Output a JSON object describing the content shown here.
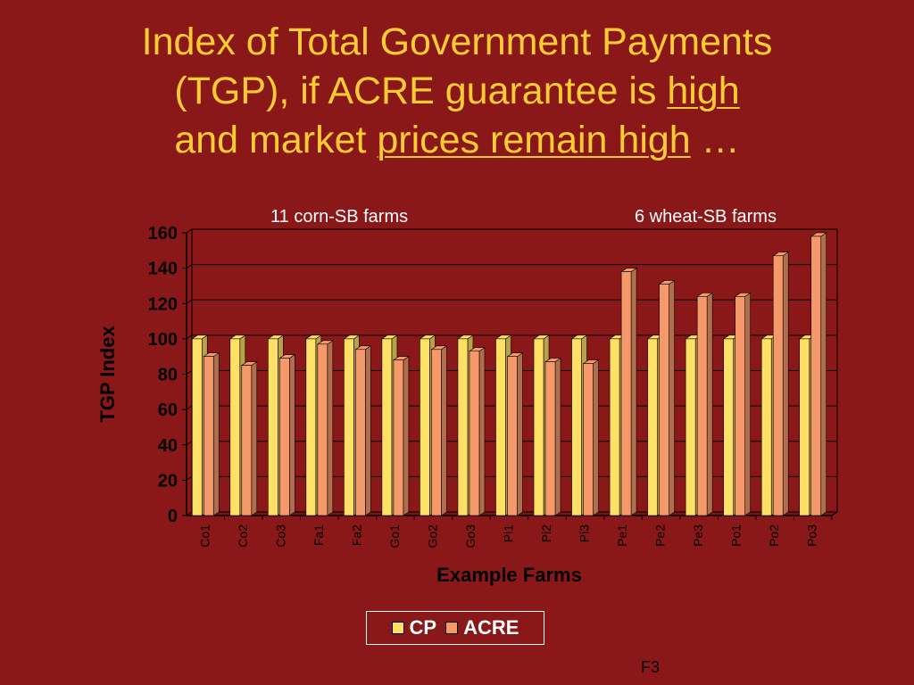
{
  "slide": {
    "title_parts": {
      "t1": "Index of Total Government Payments",
      "t2": "(TGP), if ACRE guarantee is ",
      "t3": "high",
      "t4": "and market ",
      "t5": "prices remain high",
      "t6": " …"
    },
    "group_labels": {
      "corn": "11 corn-SB farms",
      "wheat": "6 wheat-SB farms"
    },
    "footer": "F3"
  },
  "colors": {
    "background": "#8b1818",
    "title": "#ffcc33",
    "cp": "#ffe066",
    "acre": "#f5996a"
  },
  "chart_data": {
    "type": "bar",
    "xlabel": "Example Farms",
    "ylabel": "TGP Index",
    "ylim": [
      0,
      160
    ],
    "yticks": [
      0,
      20,
      40,
      60,
      80,
      100,
      120,
      140,
      160
    ],
    "categories": [
      "Co1",
      "Co2",
      "Co3",
      "Fa1",
      "Fa2",
      "Go1",
      "Go2",
      "Go3",
      "Pi1",
      "Pi2",
      "Pi3",
      "Pe1",
      "Pe2",
      "Pe3",
      "Po1",
      "Po2",
      "Po3"
    ],
    "series": [
      {
        "name": "CP",
        "values": [
          100,
          100,
          100,
          100,
          100,
          100,
          100,
          100,
          100,
          100,
          100,
          100,
          100,
          100,
          100,
          100,
          100
        ]
      },
      {
        "name": "ACRE",
        "values": [
          90,
          85,
          89,
          97,
          94,
          88,
          94,
          93,
          90,
          87,
          86,
          138,
          131,
          124,
          124,
          147,
          158
        ]
      }
    ],
    "legend": "bottom",
    "grid": true
  }
}
